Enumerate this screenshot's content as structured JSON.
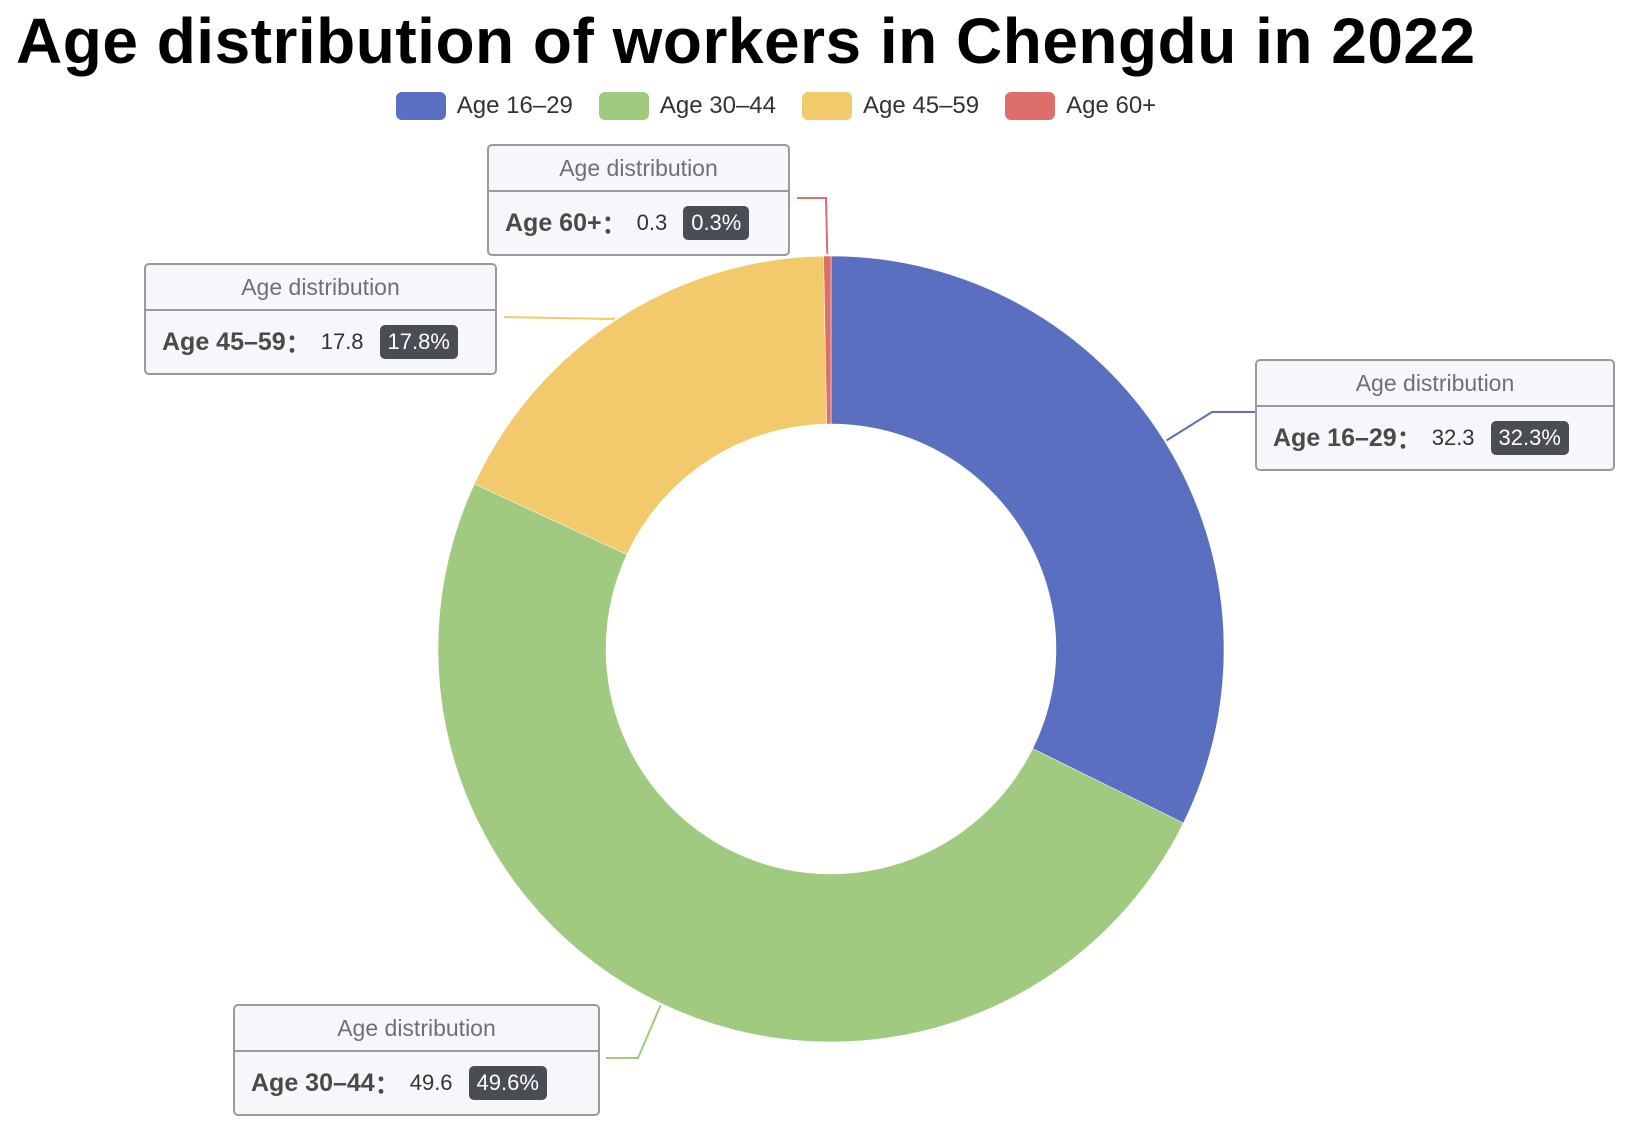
{
  "chart_data": {
    "type": "pie",
    "title": "Age distribution of workers in Chengdu in 2022",
    "series_name": "Age distribution",
    "donut": true,
    "legend_position": "top-center",
    "slices": [
      {
        "name": "Age 16–29",
        "value": 32.3,
        "percent": "32.3%",
        "color": "#5a6fc0"
      },
      {
        "name": "Age 30–44",
        "value": 49.6,
        "percent": "49.6%",
        "color": "#9fca7f"
      },
      {
        "name": "Age 45–59",
        "value": 17.8,
        "percent": "17.8%",
        "color": "#f2c96b"
      },
      {
        "name": "Age 60+",
        "value": 0.3,
        "percent": "0.3%",
        "color": "#de6e6a"
      }
    ]
  },
  "separator": "："
}
